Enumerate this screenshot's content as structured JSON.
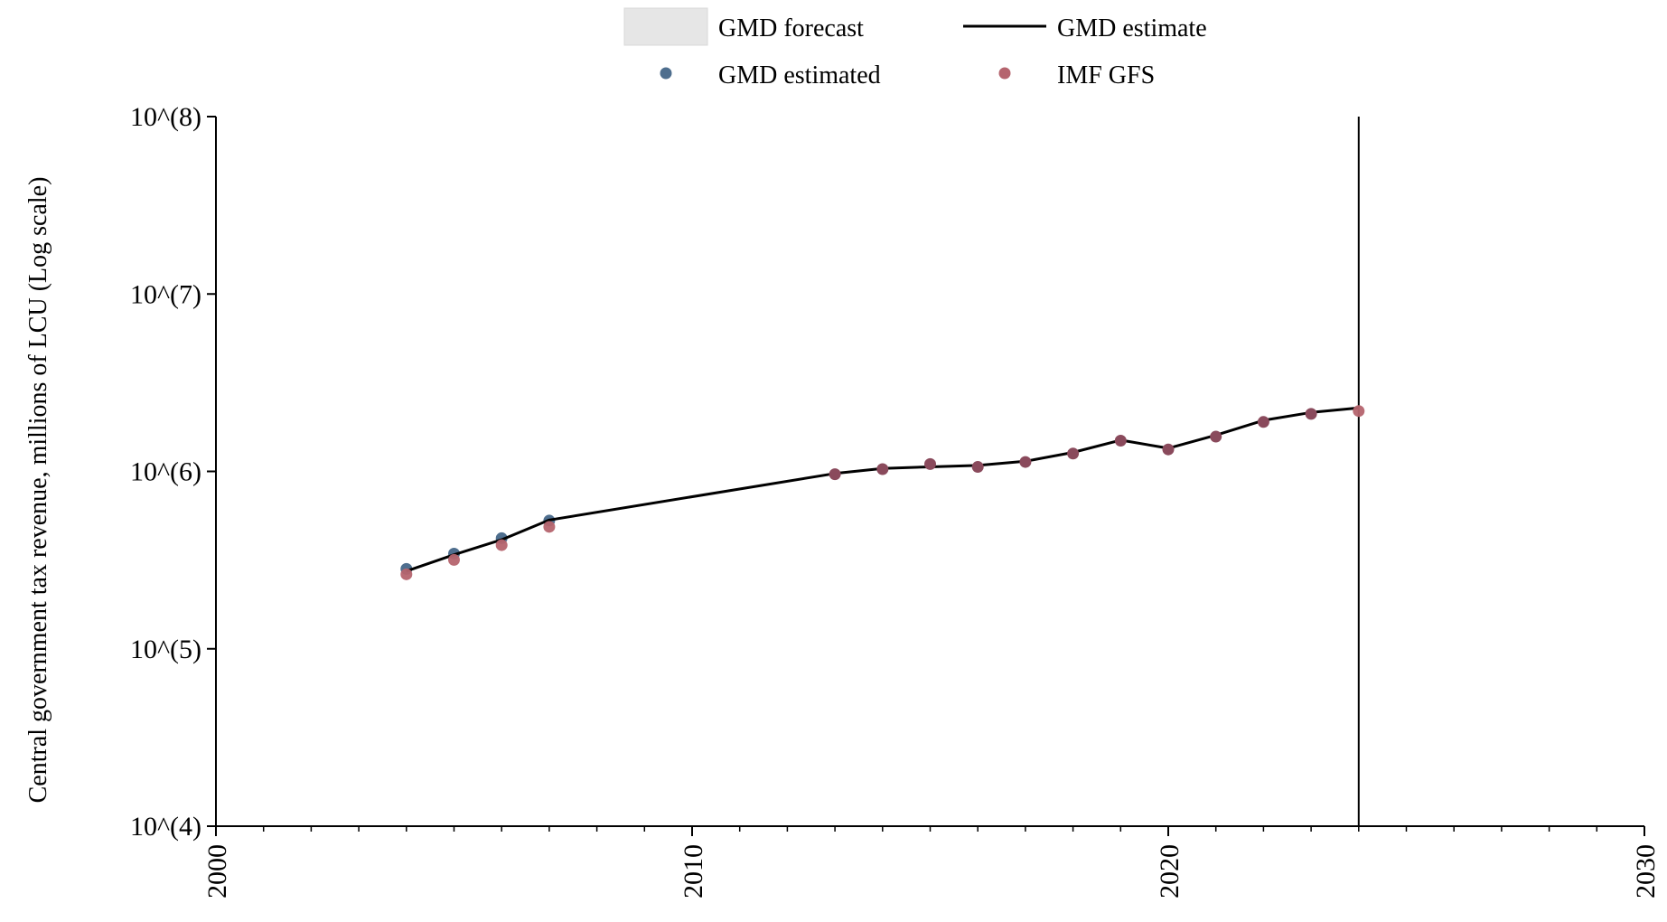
{
  "chart_data": {
    "type": "line",
    "title": "",
    "xlabel": "",
    "ylabel": "Central government tax revenue, millions of LCU (Log scale)",
    "xlim": [
      2000,
      2030
    ],
    "ylim": [
      10000,
      100000000
    ],
    "y_scale": "log",
    "x_ticks": [
      "2000",
      "2010",
      "2020",
      "2030"
    ],
    "y_ticks": [
      "10^(4)",
      "10^(5)",
      "10^(6)",
      "10^(7)",
      "10^(8)"
    ],
    "forecast_start": 2024,
    "legend": {
      "placement": "top-center",
      "entries": [
        "GMD forecast",
        "GMD estimate",
        "GMD estimated",
        "IMF GFS"
      ]
    },
    "colors": {
      "forecast": "#e6e6e6",
      "estimate_line": "#000000",
      "gmd_estimated": "#4e6e8e",
      "imf_gfs": "#b5646e",
      "imf_gfs_overlap": "#8a4a5c"
    },
    "series": [
      {
        "name": "GMD estimate",
        "kind": "line",
        "x": [
          2004,
          2005,
          2006,
          2007,
          2013,
          2014,
          2015,
          2016,
          2017,
          2018,
          2019,
          2020,
          2021,
          2022,
          2023,
          2024
        ],
        "values": [
          274000,
          339000,
          412000,
          532000,
          973000,
          1040000,
          1060000,
          1080000,
          1140000,
          1280000,
          1500000,
          1350000,
          1600000,
          1940000,
          2150000,
          2280000
        ]
      },
      {
        "name": "GMD estimated",
        "kind": "scatter",
        "x": [
          2004,
          2005,
          2006,
          2007
        ],
        "values": [
          282000,
          344000,
          420000,
          528000
        ]
      },
      {
        "name": "IMF GFS",
        "kind": "scatter",
        "x": [
          2004,
          2005,
          2006,
          2007,
          2013,
          2014,
          2015,
          2016,
          2017,
          2018,
          2019,
          2020,
          2021,
          2022,
          2023,
          2024
        ],
        "values": [
          263000,
          317000,
          384000,
          487000,
          964000,
          1030000,
          1100000,
          1060000,
          1130000,
          1260000,
          1490000,
          1330000,
          1570000,
          1900000,
          2110000,
          2190000
        ]
      }
    ]
  }
}
